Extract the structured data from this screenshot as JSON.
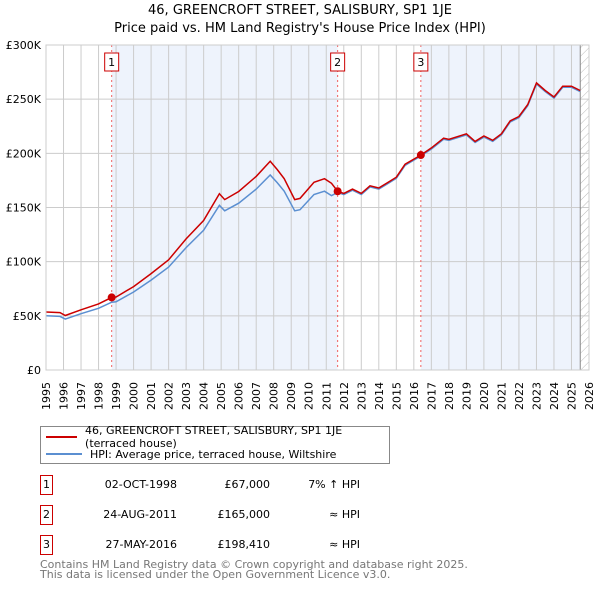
{
  "chart_data": {
    "type": "line",
    "title": "46, GREENCROFT STREET, SALISBURY, SP1 1JE",
    "subtitle": "Price paid vs. HM Land Registry's House Price Index (HPI)",
    "xlim": [
      1995,
      2026
    ],
    "ylim": [
      0,
      300000
    ],
    "x_ticks": [
      "1995",
      "1996",
      "1997",
      "1998",
      "1999",
      "2000",
      "2001",
      "2002",
      "2003",
      "2004",
      "2005",
      "2006",
      "2007",
      "2008",
      "2009",
      "2010",
      "2011",
      "2012",
      "2013",
      "2014",
      "2015",
      "2016",
      "2017",
      "2018",
      "2019",
      "2020",
      "2021",
      "2022",
      "2023",
      "2024",
      "2025",
      "2026"
    ],
    "y_ticks": [
      {
        "v": 0,
        "label": "£0"
      },
      {
        "v": 50000,
        "label": "£50K"
      },
      {
        "v": 100000,
        "label": "£100K"
      },
      {
        "v": 150000,
        "label": "£150K"
      },
      {
        "v": 200000,
        "label": "£200K"
      },
      {
        "v": 250000,
        "label": "£250K"
      },
      {
        "v": 300000,
        "label": "£300K"
      }
    ],
    "grid": true,
    "series": [
      {
        "name": "46, GREENCROFT STREET, SALISBURY, SP1 1JE (terraced house)",
        "color": "#cc0000",
        "x": [
          1995,
          1995.8,
          1996.1,
          1997,
          1998,
          1998.75,
          1999,
          2000,
          2001,
          2002,
          2003,
          2004,
          2004.9,
          2005.2,
          2006,
          2007,
          2007.8,
          2008.2,
          2008.6,
          2009.2,
          2009.5,
          2010.3,
          2010.9,
          2011.3,
          2011.65,
          2012,
          2012.5,
          2013,
          2013.5,
          2014,
          2014.5,
          2015,
          2015.5,
          2016.4,
          2017,
          2017.7,
          2018,
          2019,
          2019.5,
          2020,
          2020.5,
          2021,
          2021.5,
          2022,
          2022.5,
          2023,
          2023.5,
          2024,
          2024.5,
          2025,
          2025.5
        ],
        "y": [
          53500,
          53000,
          50300,
          55600,
          61000,
          67000,
          67400,
          77000,
          89000,
          101700,
          121000,
          138000,
          162600,
          157300,
          164800,
          178700,
          192600,
          185100,
          176600,
          157300,
          158400,
          173300,
          176600,
          172300,
          165000,
          163000,
          167000,
          163000,
          170000,
          168000,
          173000,
          178000,
          190000,
          198410,
          205000,
          214000,
          213000,
          218000,
          211000,
          216000,
          212000,
          218000,
          230000,
          234000,
          245000,
          265000,
          258000,
          252000,
          262000,
          262000,
          258000
        ]
      },
      {
        "name": "HPI: Average price, terraced house, Wiltshire",
        "color": "#5b8fd1",
        "x": [
          1995,
          1995.8,
          1996.1,
          1997,
          1998,
          1998.75,
          1999,
          2000,
          2001,
          2002,
          2003,
          2004,
          2004.9,
          2005.2,
          2006,
          2007,
          2007.8,
          2008.2,
          2008.6,
          2009.2,
          2009.5,
          2010.3,
          2010.9,
          2011.3,
          2011.65,
          2012,
          2012.5,
          2013,
          2013.5,
          2014,
          2014.5,
          2015,
          2015.5,
          2016.4,
          2017,
          2017.7,
          2018,
          2019,
          2019.5,
          2020,
          2020.5,
          2021,
          2021.5,
          2022,
          2022.5,
          2023,
          2023.5,
          2024,
          2024.5,
          2025,
          2025.5
        ],
        "y": [
          50000,
          49500,
          47000,
          52000,
          57000,
          62600,
          63000,
          72000,
          83000,
          95000,
          113000,
          129000,
          152000,
          147000,
          154000,
          167000,
          180000,
          173000,
          165000,
          147000,
          148000,
          162000,
          165000,
          161000,
          164000,
          162000,
          166000,
          162000,
          169000,
          167000,
          172000,
          177000,
          189000,
          197500,
          204000,
          213000,
          212000,
          217000,
          210000,
          215000,
          211000,
          217000,
          229000,
          233000,
          244000,
          264000,
          257000,
          251000,
          261000,
          261000,
          257000
        ]
      }
    ],
    "sales": [
      {
        "n": "1",
        "x": 1998.75,
        "y": 67000
      },
      {
        "n": "2",
        "x": 2011.65,
        "y": 165000
      },
      {
        "n": "3",
        "x": 2016.4,
        "y": 198410
      }
    ],
    "shaded_ranges": [
      [
        1998.75,
        2011.65
      ],
      [
        2016.4,
        2025.5
      ]
    ],
    "projection_start": 2025.5,
    "legend_position": "bottom"
  },
  "legend": {
    "property": "46, GREENCROFT STREET, SALISBURY, SP1 1JE (terraced house)",
    "hpi": "HPI: Average price, terraced house, Wiltshire"
  },
  "sales_table": [
    {
      "n": "1",
      "date": "02-OCT-1998",
      "price": "£67,000",
      "rel": "7% ↑ HPI"
    },
    {
      "n": "2",
      "date": "24-AUG-2011",
      "price": "£165,000",
      "rel": "≈ HPI"
    },
    {
      "n": "3",
      "date": "27-MAY-2016",
      "price": "£198,410",
      "rel": "≈ HPI"
    }
  ],
  "footer": {
    "line1": "Contains HM Land Registry data © Crown copyright and database right 2025.",
    "line2": "This data is licensed under the Open Government Licence v3.0."
  }
}
